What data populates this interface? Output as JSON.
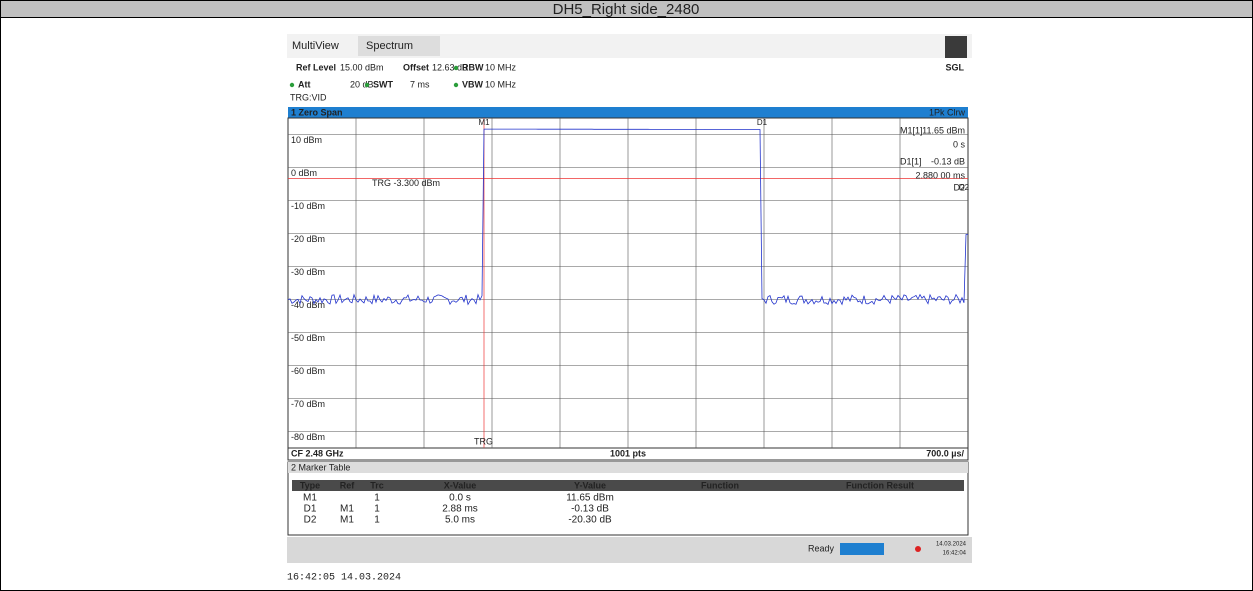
{
  "title": "DH5_Right side_2480",
  "tabs": [
    "MultiView",
    "Spectrum"
  ],
  "mode": "SGL",
  "settings": [
    [
      "Ref Level",
      "15.00 dBm",
      "Offset",
      "12.63 dB",
      "RBW",
      "10 MHz"
    ],
    [
      "Att",
      "20 dB",
      "SWT",
      "7 ms",
      "VBW",
      "10 MHz"
    ]
  ],
  "trigger": "TRG:VID",
  "window": {
    "name": "1 Zero Span",
    "trace": "1Pk Clrw",
    "levels": [
      "10 dBm",
      "0 dBm",
      "-10 dBm",
      "-20 dBm",
      "-30 dBm",
      "-40 dBm",
      "-50 dBm",
      "-60 dBm",
      "-70 dBm",
      "-80 dBm"
    ],
    "trg_label": "TRG -3.300 dBm",
    "trg": "TRG",
    "markers": [
      "M1",
      "D1",
      "D2"
    ],
    "readout": [
      "M1[1]",
      "11.65 dBm",
      "0 s",
      "D1[1]",
      "-0.13 dB",
      "2.880 00 ms",
      "D2"
    ],
    "footer": [
      "CF 2.48 GHz",
      "1001 pts",
      "700.0 µs/"
    ]
  },
  "marker_table": {
    "name": "2 Marker Table",
    "header": [
      "Type",
      "Ref",
      "Trc",
      "X-Value",
      "Y-Value",
      "Function",
      "Function Result"
    ],
    "rows": [
      [
        "M1",
        "",
        "1",
        "0.0 s",
        "11.65 dBm"
      ],
      [
        "D1",
        "M1",
        "1",
        "2.88 ms",
        "-0.13 dB"
      ],
      [
        "D2",
        "M1",
        "1",
        "5.0 ms",
        "-20.30 dB"
      ]
    ]
  },
  "status": {
    "ready": "Ready",
    "date": "14.03.2024",
    "time": "16:42:04"
  },
  "timestamp": "16:42:05 14.03.2024"
}
